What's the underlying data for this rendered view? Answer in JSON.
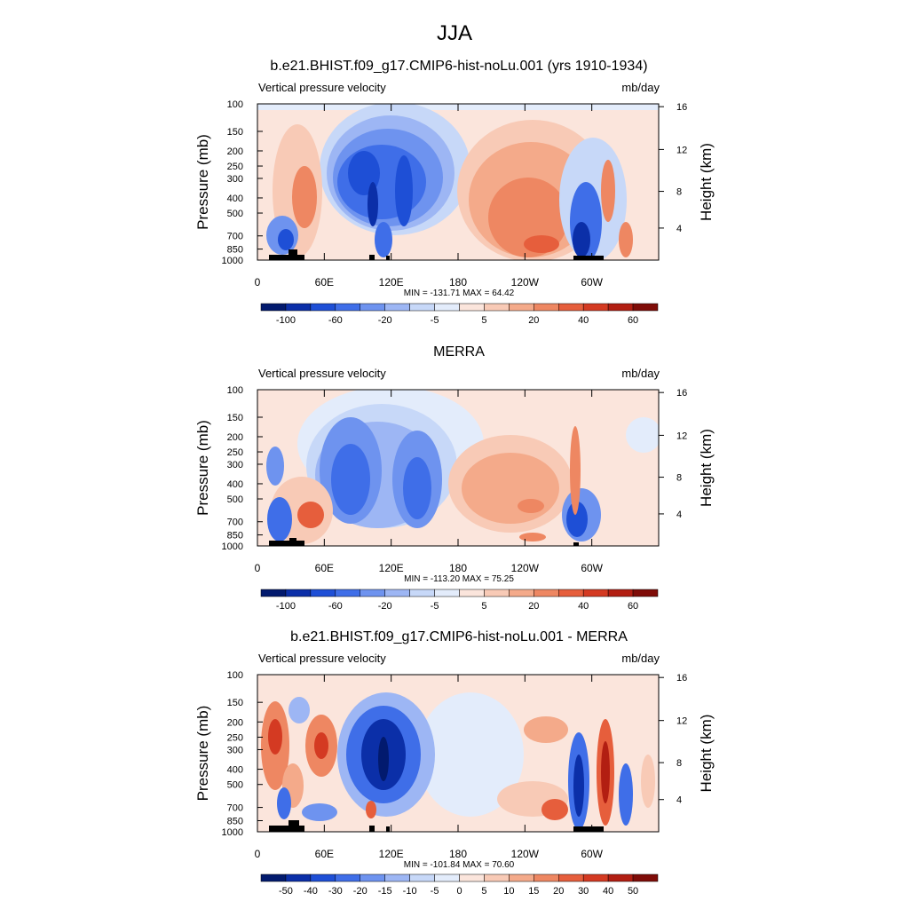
{
  "figure": {
    "season": "JJA"
  },
  "chart_data": [
    {
      "type": "heatmap",
      "title": "b.e21.BHIST.f09_g17.CMIP6-hist-noLu.001 (yrs 1910-1934)",
      "left_label": "Vertical pressure velocity",
      "right_label": "mb/day",
      "ylabel": "Pressure (mb)",
      "ylabel_right": "Height (km)",
      "y_ticks": [
        "100",
        "150",
        "200",
        "250",
        "300",
        "400",
        "500",
        "700",
        "850",
        "1000"
      ],
      "y_ticks_right": [
        "16",
        "12",
        "8",
        "4"
      ],
      "x_ticks": [
        "0",
        "60E",
        "120E",
        "180",
        "120W",
        "60W"
      ],
      "stats": "MIN = -131.71  MAX =  64.42",
      "colorbar_labels": [
        "-100",
        "-60",
        "-20",
        "-5",
        "5",
        "20",
        "40",
        "60"
      ],
      "colorbar_colors": [
        "#021a6e",
        "#0b2fa8",
        "#1e4fd6",
        "#3f6ee8",
        "#6e93ef",
        "#9db6f4",
        "#c7d8f8",
        "#e3ecfb",
        "#fbe5dc",
        "#f8cab6",
        "#f4aa8a",
        "#ee8762",
        "#e65e3c",
        "#d43a22",
        "#b21e12",
        "#7f0c08"
      ],
      "y_range": [
        100,
        1000
      ],
      "x_range": [
        0,
        360
      ],
      "grid": false
    },
    {
      "type": "heatmap",
      "title": "MERRA",
      "left_label": "Vertical pressure velocity",
      "right_label": "mb/day",
      "ylabel": "Pressure (mb)",
      "ylabel_right": "Height (km)",
      "y_ticks": [
        "100",
        "150",
        "200",
        "250",
        "300",
        "400",
        "500",
        "700",
        "850",
        "1000"
      ],
      "y_ticks_right": [
        "16",
        "12",
        "8",
        "4"
      ],
      "x_ticks": [
        "0",
        "60E",
        "120E",
        "180",
        "120W",
        "60W"
      ],
      "stats": "MIN = -113.20  MAX =  75.25",
      "colorbar_labels": [
        "-100",
        "-60",
        "-20",
        "-5",
        "5",
        "20",
        "40",
        "60"
      ],
      "colorbar_colors": [
        "#021a6e",
        "#0b2fa8",
        "#1e4fd6",
        "#3f6ee8",
        "#6e93ef",
        "#9db6f4",
        "#c7d8f8",
        "#e3ecfb",
        "#fbe5dc",
        "#f8cab6",
        "#f4aa8a",
        "#ee8762",
        "#e65e3c",
        "#d43a22",
        "#b21e12",
        "#7f0c08"
      ],
      "y_range": [
        100,
        1000
      ],
      "x_range": [
        0,
        360
      ],
      "grid": false
    },
    {
      "type": "heatmap",
      "title": "b.e21.BHIST.f09_g17.CMIP6-hist-noLu.001 - MERRA",
      "left_label": "Vertical pressure velocity",
      "right_label": "mb/day",
      "ylabel": "Pressure (mb)",
      "ylabel_right": "Height (km)",
      "y_ticks": [
        "100",
        "150",
        "200",
        "250",
        "300",
        "400",
        "500",
        "700",
        "850",
        "1000"
      ],
      "y_ticks_right": [
        "16",
        "12",
        "8",
        "4"
      ],
      "x_ticks": [
        "0",
        "60E",
        "120E",
        "180",
        "120W",
        "60W"
      ],
      "stats": "MIN = -101.84  MAX =  70.60",
      "colorbar_labels": [
        "-50",
        "-40",
        "-30",
        "-20",
        "-15",
        "-10",
        "-5",
        "0",
        "5",
        "10",
        "15",
        "20",
        "30",
        "40",
        "50"
      ],
      "colorbar_colors": [
        "#021a6e",
        "#0b2fa8",
        "#1e4fd6",
        "#3f6ee8",
        "#6e93ef",
        "#9db6f4",
        "#c7d8f8",
        "#e3ecfb",
        "#fbe5dc",
        "#f8cab6",
        "#f4aa8a",
        "#ee8762",
        "#e65e3c",
        "#d43a22",
        "#b21e12",
        "#7f0c08"
      ],
      "y_range": [
        100,
        1000
      ],
      "x_range": [
        0,
        360
      ],
      "grid": false
    }
  ]
}
